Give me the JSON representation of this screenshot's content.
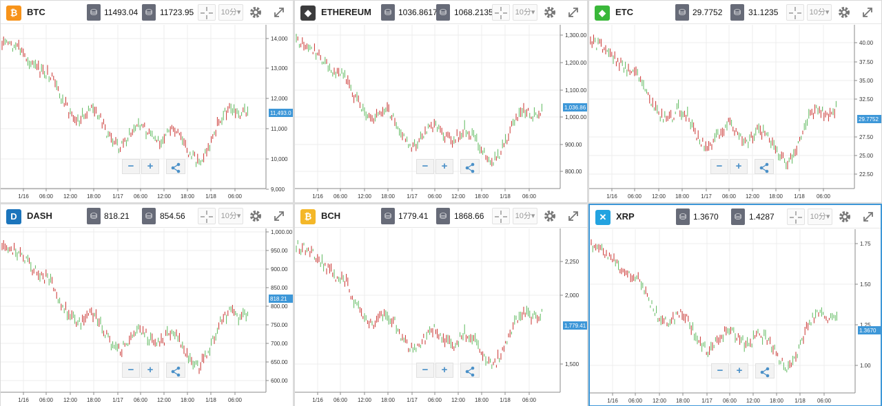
{
  "ui": {
    "sell_icon": "sell-tag-icon",
    "buy_icon": "buy-tag-icon",
    "interval_label": "10分",
    "zoom_out": "−",
    "zoom_in": "+"
  },
  "panels": [
    {
      "name": "BTC",
      "icon": "bitcoin-icon",
      "icon_glyph": "₿",
      "icon_color": "#f7931a",
      "sell": "11493.04",
      "buy": "11723.95",
      "current_label": "11,493.0",
      "y_ticks": [
        "14,000",
        "13,000",
        "12,000",
        "11,000",
        "10,000",
        "9,000"
      ],
      "x_ticks": [
        "1/16",
        "06:00",
        "12:00",
        "18:00",
        "1/17",
        "06:00",
        "12:00",
        "18:00",
        "1/18",
        "06:00"
      ],
      "active": false
    },
    {
      "name": "ETHEREUM",
      "icon": "ethereum-icon",
      "icon_glyph": "◆",
      "icon_color": "#3c3c3d",
      "sell": "1036.8617",
      "buy": "1068.2135",
      "current_label": "1,036.86",
      "y_ticks": [
        "1,300.00",
        "1,200.00",
        "1,100.00",
        "1,000.00",
        "900.00",
        "800.00"
      ],
      "x_ticks": [
        "1/16",
        "06:00",
        "12:00",
        "18:00",
        "1/17",
        "06:00",
        "12:00",
        "18:00",
        "1/18",
        "06:00"
      ],
      "active": false
    },
    {
      "name": "ETC",
      "icon": "ethereum-classic-icon",
      "icon_glyph": "◆",
      "icon_color": "#3ab83a",
      "sell": "29.7752",
      "buy": "31.1235",
      "current_label": "29.7752",
      "y_ticks": [
        "40.00",
        "37.50",
        "35.00",
        "32.50",
        "27.50",
        "25.00",
        "22.50"
      ],
      "x_ticks": [
        "1/16",
        "06:00",
        "12:00",
        "18:00",
        "1/17",
        "06:00",
        "12:00",
        "18:00",
        "1/18",
        "06:00"
      ],
      "active": false
    },
    {
      "name": "DASH",
      "icon": "dash-icon",
      "icon_glyph": "D",
      "icon_color": "#1c75bc",
      "sell": "818.21",
      "buy": "854.56",
      "current_label": "818.21",
      "y_ticks": [
        "1,000.00",
        "950.00",
        "900.00",
        "850.00",
        "800.00",
        "750.00",
        "700.00",
        "650.00",
        "600.00"
      ],
      "x_ticks": [
        "1/16",
        "06:00",
        "12:00",
        "18:00",
        "1/17",
        "06:00",
        "12:00",
        "18:00",
        "1/18",
        "06:00"
      ],
      "active": false
    },
    {
      "name": "BCH",
      "icon": "bitcoin-cash-icon",
      "icon_glyph": "₿",
      "icon_color": "#f4b728",
      "sell": "1779.41",
      "buy": "1868.66",
      "current_label": "1,779.41",
      "y_ticks": [
        "2,250",
        "2,000",
        "1,500"
      ],
      "x_ticks": [
        "1/16",
        "06:00",
        "12:00",
        "18:00",
        "1/17",
        "06:00",
        "12:00",
        "18:00",
        "1/18",
        "06:00"
      ],
      "active": false
    },
    {
      "name": "XRP",
      "icon": "ripple-icon",
      "icon_glyph": "✕",
      "icon_color": "#23a3e0",
      "sell": "1.3670",
      "buy": "1.4287",
      "current_label": "1.3670",
      "y_ticks": [
        "1.75",
        "1.50",
        "1.25",
        "1.00"
      ],
      "x_ticks": [
        "1/16",
        "06:00",
        "12:00",
        "18:00",
        "1/17",
        "06:00",
        "12:00",
        "18:00",
        "1/18",
        "06:00"
      ],
      "active": true
    }
  ]
}
